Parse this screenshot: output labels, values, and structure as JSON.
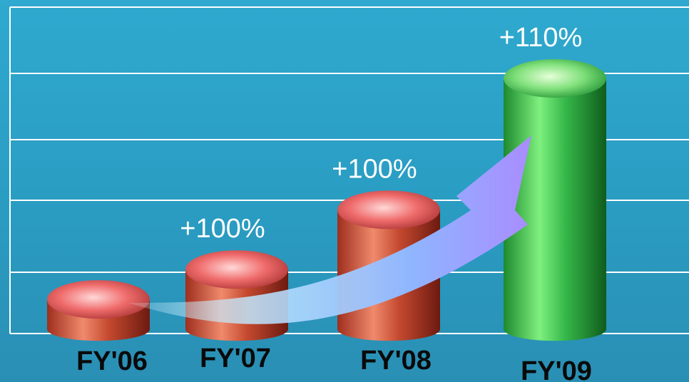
{
  "chart_data": {
    "type": "bar",
    "categories": [
      "FY'06",
      "FY'07",
      "FY'08",
      "FY'09"
    ],
    "values": [
      1.0,
      2.0,
      4.0,
      8.4
    ],
    "growth_labels": [
      "",
      "+100%",
      "+100%",
      "+110%"
    ],
    "title": "",
    "xlabel": "",
    "ylabel": "",
    "grid": true,
    "bar_style": "3d-cylinder",
    "colors": {
      "bar": "#c8533a",
      "bar_highlight": "#f07a62",
      "bar_last": "#3fbf52",
      "arrow": "#9f8cff",
      "background": "#2fa9cf",
      "grid": "#ffffff"
    }
  }
}
